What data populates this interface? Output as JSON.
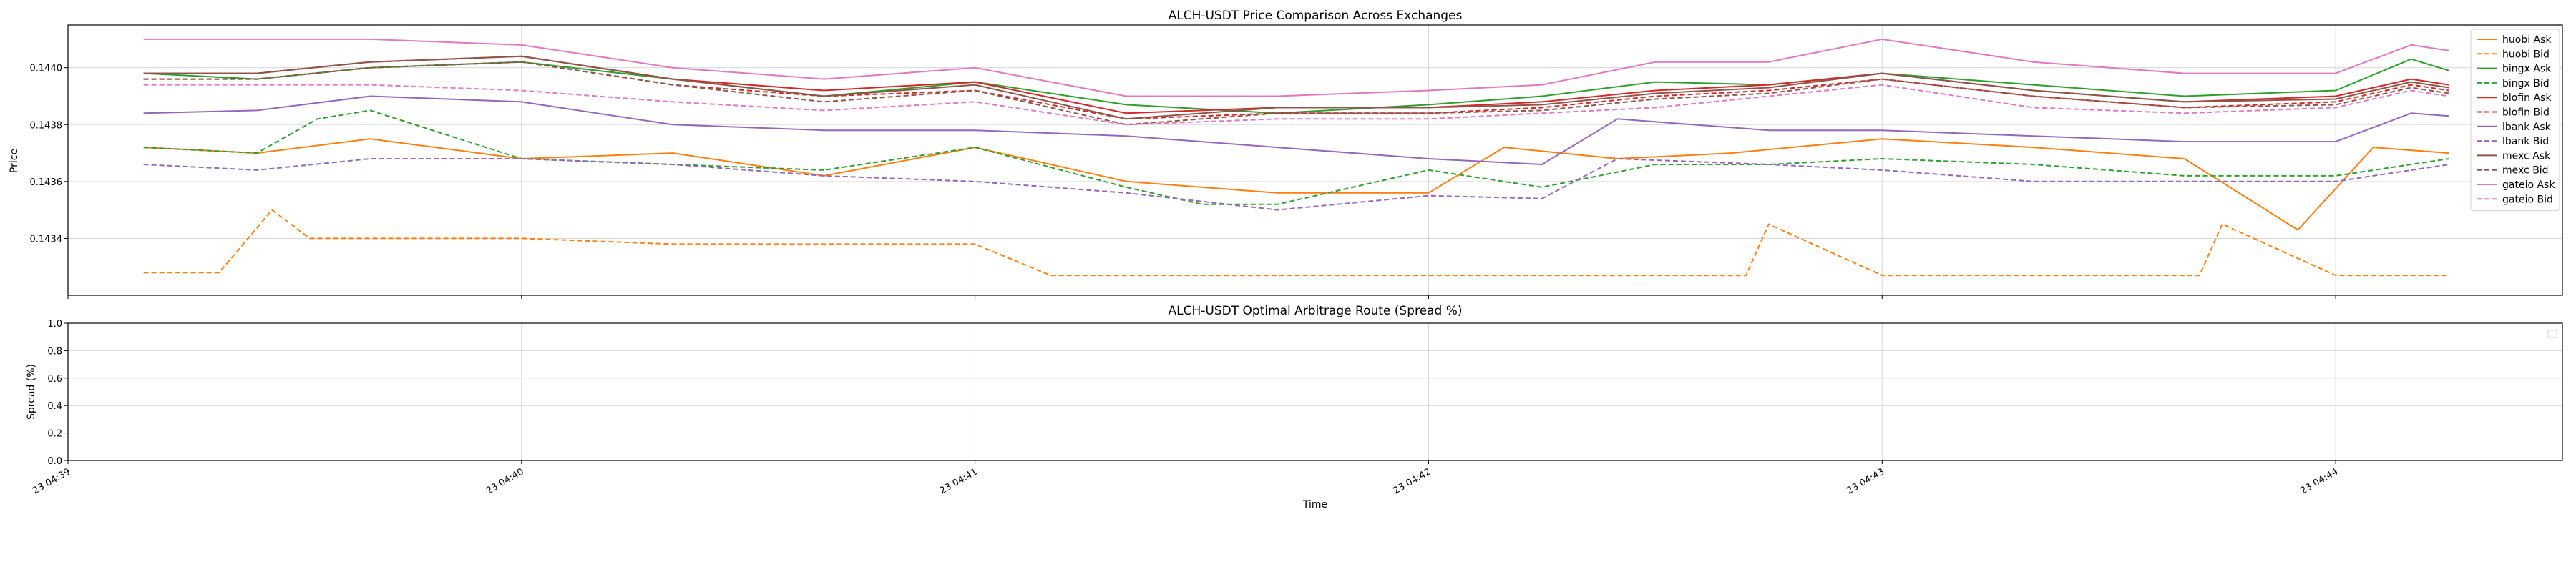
{
  "chart_data": [
    {
      "type": "line",
      "title": "ALCH-USDT Price Comparison Across Exchanges",
      "xlabel": "",
      "ylabel": "Price",
      "ylim": [
        0.1432,
        0.14415
      ],
      "yticks": [
        0.1434,
        0.1436,
        0.1438,
        0.144
      ],
      "ytick_labels": [
        "0.1434",
        "0.1436",
        "0.1438",
        "0.1440"
      ],
      "xlim": [
        "04:39:00",
        "04:44:30"
      ],
      "xticks": [
        "04:39:00",
        "04:40:00",
        "04:41:00",
        "04:42:00",
        "04:43:00",
        "04:44:00"
      ],
      "grid": true,
      "legend_position": "top-right",
      "series": [
        {
          "name": "huobi Ask",
          "color": "#ff7f0e",
          "dash": "solid",
          "x": [
            "04:39:10",
            "04:39:25",
            "04:39:40",
            "04:40:00",
            "04:40:20",
            "04:40:40",
            "04:41:00",
            "04:41:20",
            "04:41:40",
            "04:42:00",
            "04:42:10",
            "04:42:25",
            "04:42:40",
            "04:43:00",
            "04:43:20",
            "04:43:40",
            "04:43:55",
            "04:44:05",
            "04:44:15"
          ],
          "values": [
            0.14372,
            0.1437,
            0.14375,
            0.14368,
            0.1437,
            0.14362,
            0.14372,
            0.1436,
            0.14356,
            0.14356,
            0.14372,
            0.14368,
            0.1437,
            0.14375,
            0.14372,
            0.14368,
            0.14343,
            0.14372,
            0.1437
          ]
        },
        {
          "name": "huobi Bid",
          "color": "#ff7f0e",
          "dash": "dashed",
          "x": [
            "04:39:10",
            "04:39:20",
            "04:39:27",
            "04:39:32",
            "04:39:45",
            "04:40:00",
            "04:40:20",
            "04:40:38",
            "04:41:00",
            "04:41:10",
            "04:41:30",
            "04:42:00",
            "04:42:20",
            "04:42:42",
            "04:42:45",
            "04:43:00",
            "04:43:30",
            "04:43:42",
            "04:43:45",
            "04:44:00",
            "04:44:15"
          ],
          "values": [
            0.14328,
            0.14328,
            0.1435,
            0.1434,
            0.1434,
            0.1434,
            0.14338,
            0.14338,
            0.14338,
            0.14327,
            0.14327,
            0.14327,
            0.14327,
            0.14327,
            0.14345,
            0.14327,
            0.14327,
            0.14327,
            0.14345,
            0.14327,
            0.14327
          ]
        },
        {
          "name": "bingx Ask",
          "color": "#2ca02c",
          "dash": "solid",
          "x": [
            "04:39:10",
            "04:39:25",
            "04:39:40",
            "04:40:00",
            "04:40:20",
            "04:40:40",
            "04:41:00",
            "04:41:20",
            "04:41:40",
            "04:42:00",
            "04:42:15",
            "04:42:30",
            "04:42:45",
            "04:43:00",
            "04:43:20",
            "04:43:40",
            "04:44:00",
            "04:44:10",
            "04:44:15"
          ],
          "values": [
            0.14398,
            0.14396,
            0.144,
            0.14402,
            0.14396,
            0.1439,
            0.14395,
            0.14387,
            0.14384,
            0.14387,
            0.1439,
            0.14395,
            0.14394,
            0.14398,
            0.14394,
            0.1439,
            0.14392,
            0.14403,
            0.14399
          ]
        },
        {
          "name": "bingx Bid",
          "color": "#2ca02c",
          "dash": "dashed",
          "x": [
            "04:39:10",
            "04:39:25",
            "04:39:33",
            "04:39:40",
            "04:40:00",
            "04:40:20",
            "04:40:40",
            "04:41:00",
            "04:41:20",
            "04:41:30",
            "04:41:40",
            "04:42:00",
            "04:42:15",
            "04:42:30",
            "04:42:45",
            "04:43:00",
            "04:43:20",
            "04:43:40",
            "04:44:00",
            "04:44:15"
          ],
          "values": [
            0.14372,
            0.1437,
            0.14382,
            0.14385,
            0.14368,
            0.14366,
            0.14364,
            0.14372,
            0.14358,
            0.14352,
            0.14352,
            0.14364,
            0.14358,
            0.14366,
            0.14366,
            0.14368,
            0.14366,
            0.14362,
            0.14362,
            0.14368
          ]
        },
        {
          "name": "blofin Ask",
          "color": "#d62728",
          "dash": "solid",
          "x": [
            "04:39:10",
            "04:39:25",
            "04:39:40",
            "04:40:00",
            "04:40:20",
            "04:40:40",
            "04:41:00",
            "04:41:20",
            "04:41:40",
            "04:42:00",
            "04:42:15",
            "04:42:30",
            "04:42:45",
            "04:43:00",
            "04:43:20",
            "04:43:40",
            "04:44:00",
            "04:44:10",
            "04:44:15"
          ],
          "values": [
            0.14398,
            0.14398,
            0.14402,
            0.14404,
            0.14396,
            0.14392,
            0.14395,
            0.14384,
            0.14386,
            0.14386,
            0.14388,
            0.14392,
            0.14394,
            0.14398,
            0.14392,
            0.14388,
            0.1439,
            0.14396,
            0.14394
          ]
        },
        {
          "name": "blofin Bid",
          "color": "#d62728",
          "dash": "dashed",
          "x": [
            "04:39:10",
            "04:39:25",
            "04:39:40",
            "04:40:00",
            "04:40:20",
            "04:40:40",
            "04:41:00",
            "04:41:20",
            "04:41:40",
            "04:42:00",
            "04:42:15",
            "04:42:30",
            "04:42:45",
            "04:43:00",
            "04:43:20",
            "04:43:40",
            "04:44:00",
            "04:44:10",
            "04:44:15"
          ],
          "values": [
            0.14396,
            0.14396,
            0.144,
            0.14402,
            0.14394,
            0.1439,
            0.14392,
            0.14382,
            0.14384,
            0.14384,
            0.14386,
            0.1439,
            0.14392,
            0.14396,
            0.1439,
            0.14386,
            0.14388,
            0.14394,
            0.14392
          ]
        },
        {
          "name": "lbank Ask",
          "color": "#9467bd",
          "dash": "solid",
          "x": [
            "04:39:10",
            "04:39:25",
            "04:39:40",
            "04:40:00",
            "04:40:20",
            "04:40:40",
            "04:41:00",
            "04:41:20",
            "04:41:40",
            "04:42:00",
            "04:42:15",
            "04:42:25",
            "04:42:45",
            "04:43:00",
            "04:43:20",
            "04:43:40",
            "04:44:00",
            "04:44:10",
            "04:44:15"
          ],
          "values": [
            0.14384,
            0.14385,
            0.1439,
            0.14388,
            0.1438,
            0.14378,
            0.14378,
            0.14376,
            0.14372,
            0.14368,
            0.14366,
            0.14382,
            0.14378,
            0.14378,
            0.14376,
            0.14374,
            0.14374,
            0.14384,
            0.14383
          ]
        },
        {
          "name": "lbank Bid",
          "color": "#9467bd",
          "dash": "dashed",
          "x": [
            "04:39:10",
            "04:39:25",
            "04:39:40",
            "04:40:00",
            "04:40:20",
            "04:40:40",
            "04:41:00",
            "04:41:20",
            "04:41:40",
            "04:42:00",
            "04:42:15",
            "04:42:25",
            "04:42:45",
            "04:43:00",
            "04:43:20",
            "04:43:40",
            "04:44:00",
            "04:44:15"
          ],
          "values": [
            0.14366,
            0.14364,
            0.14368,
            0.14368,
            0.14366,
            0.14362,
            0.1436,
            0.14356,
            0.1435,
            0.14355,
            0.14354,
            0.14368,
            0.14366,
            0.14364,
            0.1436,
            0.1436,
            0.1436,
            0.14366
          ]
        },
        {
          "name": "mexc Ask",
          "color": "#8c564b",
          "dash": "solid",
          "x": [
            "04:39:10",
            "04:39:25",
            "04:39:40",
            "04:40:00",
            "04:40:20",
            "04:40:40",
            "04:41:00",
            "04:41:20",
            "04:41:40",
            "04:42:00",
            "04:42:15",
            "04:42:30",
            "04:42:45",
            "04:43:00",
            "04:43:20",
            "04:43:40",
            "04:44:00",
            "04:44:10",
            "04:44:15"
          ],
          "values": [
            0.14398,
            0.14398,
            0.14402,
            0.14404,
            0.14396,
            0.1439,
            0.14394,
            0.14382,
            0.14386,
            0.14386,
            0.14387,
            0.14391,
            0.14393,
            0.14398,
            0.14392,
            0.14388,
            0.14389,
            0.14395,
            0.14393
          ]
        },
        {
          "name": "mexc Bid",
          "color": "#8c564b",
          "dash": "dashed",
          "x": [
            "04:39:10",
            "04:39:25",
            "04:39:40",
            "04:40:00",
            "04:40:20",
            "04:40:40",
            "04:41:00",
            "04:41:20",
            "04:41:40",
            "04:42:00",
            "04:42:15",
            "04:42:30",
            "04:42:45",
            "04:43:00",
            "04:43:20",
            "04:43:40",
            "04:44:00",
            "04:44:10",
            "04:44:15"
          ],
          "values": [
            0.14396,
            0.14396,
            0.144,
            0.14402,
            0.14394,
            0.14388,
            0.14392,
            0.1438,
            0.14384,
            0.14384,
            0.14385,
            0.14389,
            0.14391,
            0.14396,
            0.1439,
            0.14386,
            0.14387,
            0.14393,
            0.14391
          ]
        },
        {
          "name": "gateio Ask",
          "color": "#e377c2",
          "dash": "solid",
          "x": [
            "04:39:10",
            "04:39:25",
            "04:39:40",
            "04:40:00",
            "04:40:20",
            "04:40:40",
            "04:41:00",
            "04:41:20",
            "04:41:40",
            "04:42:00",
            "04:42:15",
            "04:42:30",
            "04:42:45",
            "04:43:00",
            "04:43:20",
            "04:43:40",
            "04:44:00",
            "04:44:10",
            "04:44:15"
          ],
          "values": [
            0.1441,
            0.1441,
            0.1441,
            0.14408,
            0.144,
            0.14396,
            0.144,
            0.1439,
            0.1439,
            0.14392,
            0.14394,
            0.14402,
            0.14402,
            0.1441,
            0.14402,
            0.14398,
            0.14398,
            0.14408,
            0.14406
          ]
        },
        {
          "name": "gateio Bid",
          "color": "#e377c2",
          "dash": "dashed",
          "x": [
            "04:39:10",
            "04:39:25",
            "04:39:40",
            "04:40:00",
            "04:40:20",
            "04:40:40",
            "04:41:00",
            "04:41:20",
            "04:41:40",
            "04:42:00",
            "04:42:15",
            "04:42:30",
            "04:42:45",
            "04:43:00",
            "04:43:20",
            "04:43:40",
            "04:44:00",
            "04:44:10",
            "04:44:15"
          ],
          "values": [
            0.14394,
            0.14394,
            0.14394,
            0.14392,
            0.14388,
            0.14385,
            0.14388,
            0.1438,
            0.14382,
            0.14382,
            0.14384,
            0.14386,
            0.1439,
            0.14394,
            0.14386,
            0.14384,
            0.14386,
            0.14392,
            0.1439
          ]
        }
      ]
    },
    {
      "type": "line",
      "title": "ALCH-USDT Optimal Arbitrage Route (Spread %)",
      "xlabel": "Time",
      "ylabel": "Spread (%)",
      "ylim": [
        0.0,
        1.0
      ],
      "yticks": [
        0.0,
        0.2,
        0.4,
        0.6,
        0.8,
        1.0
      ],
      "ytick_labels": [
        "0.0",
        "0.2",
        "0.4",
        "0.6",
        "0.8",
        "1.0"
      ],
      "xlim": [
        "04:39:00",
        "04:44:30"
      ],
      "xticks": [
        "04:39:00",
        "04:40:00",
        "04:41:00",
        "04:42:00",
        "04:43:00",
        "04:44:00"
      ],
      "xtick_labels": [
        "23 04:39",
        "23 04:40",
        "23 04:41",
        "23 04:42",
        "23 04:43",
        "23 04:44"
      ],
      "grid": true,
      "legend_position": "top-right",
      "series": []
    }
  ]
}
